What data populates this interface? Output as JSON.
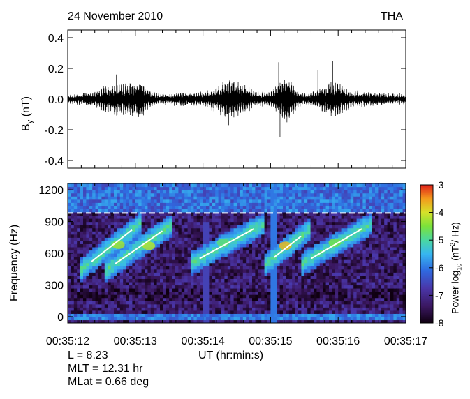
{
  "header": {
    "date": "24 November 2010",
    "probe": "THA"
  },
  "chart_data": [
    {
      "type": "line",
      "panel": "top",
      "ylabel_main": "B",
      "ylabel_sub": "y",
      "ylabel_unit": "(nT)",
      "ylim": [
        -0.45,
        0.45
      ],
      "yticks": [
        "0.4",
        "0.2",
        "0.0",
        "-0.2",
        "-0.4"
      ],
      "ytick_values": [
        0.4,
        0.2,
        0.0,
        -0.2,
        -0.4
      ],
      "xlim_s": [
        12,
        17
      ],
      "envelope": {
        "t": [
          12.0,
          12.2,
          12.4,
          12.55,
          12.7,
          12.9,
          13.0,
          13.1,
          13.2,
          13.35,
          13.5,
          13.65,
          13.8,
          14.0,
          14.2,
          14.35,
          14.5,
          14.7,
          14.85,
          15.0,
          15.15,
          15.25,
          15.4,
          15.55,
          15.7,
          15.85,
          16.0,
          16.2,
          16.4,
          16.6,
          16.8,
          17.0
        ],
        "amp": [
          0.03,
          0.04,
          0.05,
          0.09,
          0.12,
          0.11,
          0.13,
          0.12,
          0.06,
          0.04,
          0.04,
          0.05,
          0.04,
          0.05,
          0.09,
          0.13,
          0.12,
          0.08,
          0.05,
          0.05,
          0.12,
          0.16,
          0.06,
          0.04,
          0.07,
          0.11,
          0.12,
          0.06,
          0.05,
          0.04,
          0.04,
          0.04
        ]
      },
      "spikes": [
        {
          "t": 12.72,
          "v": 0.16
        },
        {
          "t": 13.1,
          "v": 0.24
        },
        {
          "t": 13.1,
          "v": -0.19
        },
        {
          "t": 14.3,
          "v": 0.17
        },
        {
          "t": 14.38,
          "v": -0.17
        },
        {
          "t": 15.12,
          "v": 0.24
        },
        {
          "t": 15.14,
          "v": -0.25
        },
        {
          "t": 15.7,
          "v": 0.19
        },
        {
          "t": 15.92,
          "v": 0.25
        },
        {
          "t": 15.95,
          "v": -0.15
        }
      ]
    },
    {
      "type": "heatmap",
      "panel": "bottom",
      "ylabel": "Frequency (Hz)",
      "xlabel": "UT (hr:min:s)",
      "ylim": [
        -60,
        1260
      ],
      "yticks": [
        "1200",
        "900",
        "600",
        "300",
        "0"
      ],
      "ytick_values": [
        1200,
        900,
        600,
        300,
        0
      ],
      "xticks": [
        "00:35:12",
        "00:35:13",
        "00:35:14",
        "00:35:15",
        "00:35:16",
        "00:35:17"
      ],
      "xtick_values": [
        12,
        13,
        14,
        15,
        16,
        17
      ],
      "dashed_line_hz": 980,
      "colorbar": {
        "label": "Power log",
        "label_sub": "10",
        "label_unit": "(nT",
        "label_sup": "2",
        "label_end": "/ Hz)",
        "ticks": [
          "-3",
          "-4",
          "-5",
          "-6",
          "-7",
          "-8"
        ],
        "tick_values": [
          -3,
          -4,
          -5,
          -6,
          -7,
          -8
        ],
        "range": [
          -8,
          -3
        ]
      },
      "rising_tones": [
        {
          "t0": 12.35,
          "f0": 520,
          "t1": 12.95,
          "f1": 820
        },
        {
          "t0": 12.7,
          "f0": 500,
          "t1": 13.4,
          "f1": 810
        },
        {
          "t0": 13.95,
          "f0": 550,
          "t1": 14.75,
          "f1": 830
        },
        {
          "t0": 15.05,
          "f0": 560,
          "t1": 15.45,
          "f1": 760
        },
        {
          "t0": 15.6,
          "f0": 550,
          "t1": 16.35,
          "f1": 830
        }
      ],
      "bright_elements": [
        {
          "t": 12.75,
          "f": 680,
          "v": -4.3
        },
        {
          "t": 13.2,
          "f": 670,
          "v": -4.2
        },
        {
          "t": 14.3,
          "f": 700,
          "v": -4.8
        },
        {
          "t": 15.22,
          "f": 670,
          "v": -3.7
        },
        {
          "t": 15.95,
          "f": 700,
          "v": -4.6
        }
      ]
    }
  ],
  "footer": {
    "l": "L = 8.23",
    "mlt": "MLT = 12.31 hr",
    "mlat": "MLat = 0.66 deg"
  }
}
